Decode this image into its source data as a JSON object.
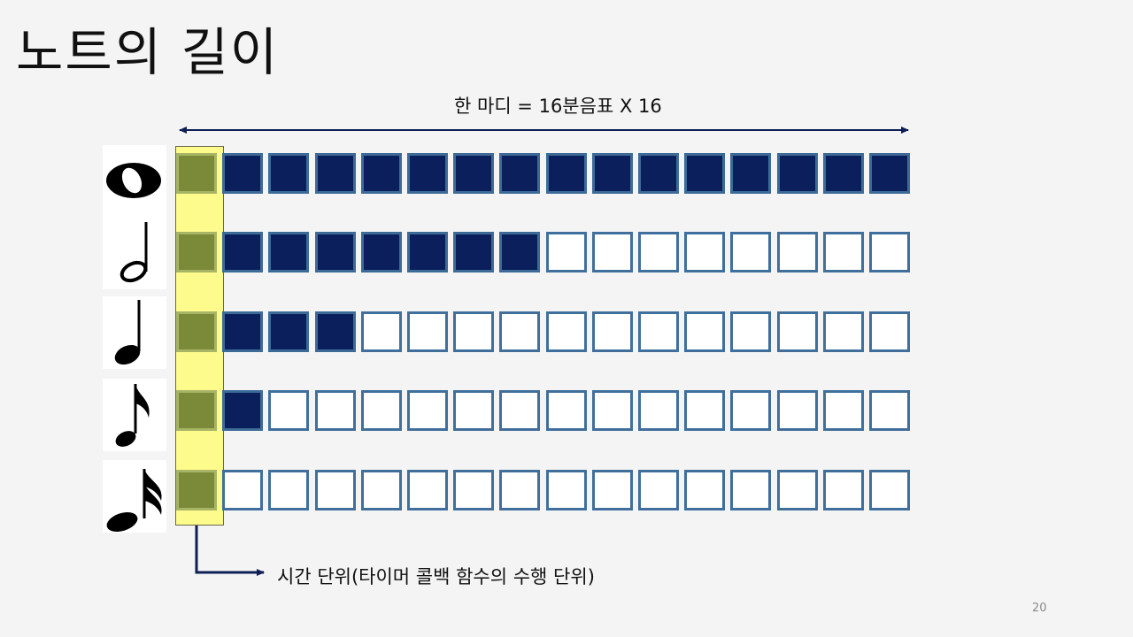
{
  "slide": {
    "title": "노트의 길이",
    "measure_label": "한 마디 = 16분음표 X 16",
    "time_unit_label": "시간 단위(타이머 콜백 함수의 수행 단위)",
    "page_number": "20"
  },
  "notes": [
    {
      "name": "whole-note",
      "sixteenths": 16
    },
    {
      "name": "half-note",
      "sixteenths": 8
    },
    {
      "name": "quarter-note",
      "sixteenths": 4
    },
    {
      "name": "eighth-note",
      "sixteenths": 2
    },
    {
      "name": "sixteenth-note",
      "sixteenths": 1
    }
  ],
  "grid": {
    "columns": 16
  },
  "colors": {
    "filled": "#0b1f5c",
    "empty": "#ffffff",
    "border": "#416f9c",
    "time_unit": "#7a8a38",
    "highlight": "#fdfb8c",
    "arrow": "#0d1f55"
  }
}
